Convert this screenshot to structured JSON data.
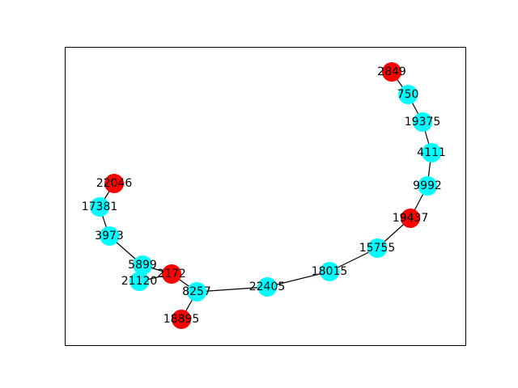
{
  "graph": {
    "colors": {
      "highlight": "#ff0000",
      "normal": "#00ffff",
      "edge": "#000000",
      "frame": "#000000"
    },
    "nodes": [
      {
        "id": "2849",
        "group": "highlight"
      },
      {
        "id": "750",
        "group": "normal"
      },
      {
        "id": "19375",
        "group": "normal"
      },
      {
        "id": "4111",
        "group": "normal"
      },
      {
        "id": "9992",
        "group": "normal"
      },
      {
        "id": "19437",
        "group": "highlight"
      },
      {
        "id": "15755",
        "group": "normal"
      },
      {
        "id": "18015",
        "group": "normal"
      },
      {
        "id": "22405",
        "group": "normal"
      },
      {
        "id": "8257",
        "group": "normal"
      },
      {
        "id": "18895",
        "group": "highlight"
      },
      {
        "id": "2172",
        "group": "highlight"
      },
      {
        "id": "21120",
        "group": "normal"
      },
      {
        "id": "5899",
        "group": "normal"
      },
      {
        "id": "3973",
        "group": "normal"
      },
      {
        "id": "17381",
        "group": "normal"
      },
      {
        "id": "22046",
        "group": "highlight"
      }
    ],
    "edges": [
      [
        "2849",
        "750"
      ],
      [
        "750",
        "19375"
      ],
      [
        "19375",
        "4111"
      ],
      [
        "4111",
        "9992"
      ],
      [
        "9992",
        "19437"
      ],
      [
        "19437",
        "15755"
      ],
      [
        "15755",
        "18015"
      ],
      [
        "18015",
        "22405"
      ],
      [
        "22405",
        "8257"
      ],
      [
        "8257",
        "18895"
      ],
      [
        "8257",
        "2172"
      ],
      [
        "2172",
        "21120"
      ],
      [
        "2172",
        "5899"
      ],
      [
        "5899",
        "3973"
      ],
      [
        "3973",
        "17381"
      ],
      [
        "17381",
        "22046"
      ]
    ]
  }
}
